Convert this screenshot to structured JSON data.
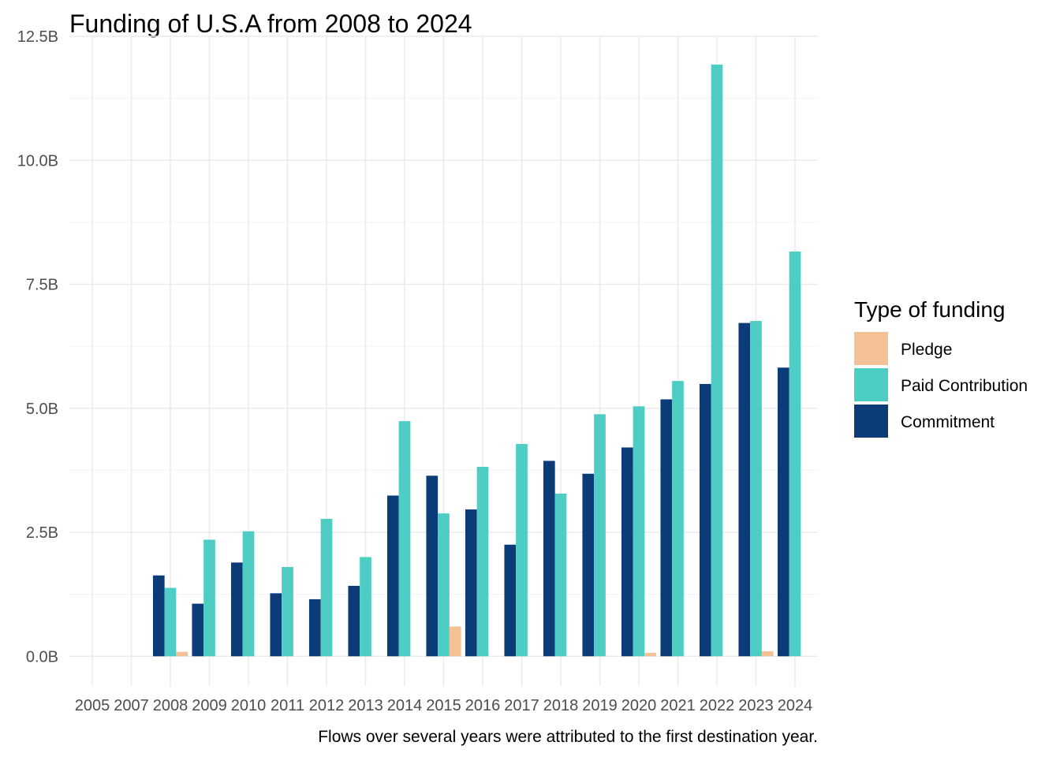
{
  "chart_data": {
    "type": "bar",
    "title": "Funding of U.S.A from 2008 to 2024",
    "caption": "Flows over several years were attributed to the first destination year.",
    "xlabel": "",
    "ylabel": "",
    "grid": true,
    "legend_position": "right",
    "legend_title": "Type of funding",
    "categories": [
      "2005",
      "2007",
      "2008",
      "2009",
      "2010",
      "2011",
      "2012",
      "2013",
      "2014",
      "2015",
      "2016",
      "2017",
      "2018",
      "2019",
      "2020",
      "2021",
      "2022",
      "2023",
      "2024"
    ],
    "ylim": [
      -0.6,
      12.5
    ],
    "y_ticks": [
      0,
      2.5,
      5,
      7.5,
      10,
      12.5
    ],
    "y_tick_labels": [
      "0.0B",
      "2.5B",
      "5.0B",
      "7.5B",
      "10.0B",
      "12.5B"
    ],
    "series": [
      {
        "name": "Pledge",
        "color": "#f4c095",
        "values": [
          null,
          null,
          0.09,
          null,
          null,
          null,
          null,
          null,
          null,
          0.6,
          null,
          null,
          null,
          null,
          0.07,
          null,
          null,
          0.1,
          null
        ]
      },
      {
        "name": "Paid Contribution",
        "color": "#4ecdc4",
        "values": [
          null,
          null,
          1.38,
          2.35,
          2.52,
          1.8,
          2.77,
          2.0,
          4.74,
          2.88,
          3.82,
          4.28,
          3.28,
          4.88,
          5.04,
          5.55,
          11.93,
          6.76,
          8.16
        ]
      },
      {
        "name": "Commitment",
        "color": "#0b3c78",
        "values": [
          null,
          null,
          1.63,
          1.06,
          1.89,
          1.27,
          1.15,
          1.42,
          3.24,
          3.64,
          2.96,
          2.25,
          3.94,
          3.68,
          4.21,
          5.18,
          5.49,
          6.72,
          5.82
        ]
      }
    ]
  }
}
